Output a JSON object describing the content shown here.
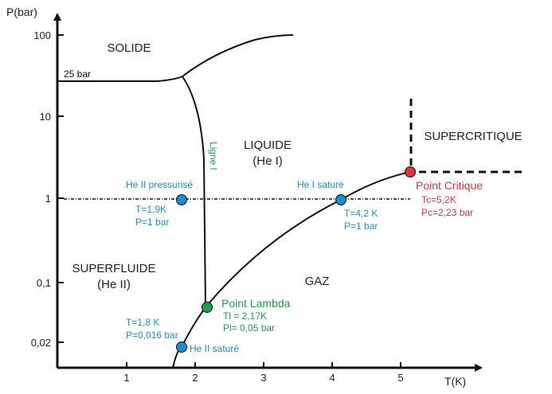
{
  "axes": {
    "y_title": "P(bar)",
    "x_title": "T(K)",
    "y_ticks": [
      "100",
      "10",
      "1",
      "0,1",
      "0,02"
    ],
    "x_ticks": [
      "1",
      "2",
      "3",
      "4",
      "5"
    ]
  },
  "phases": {
    "solide": "SOLIDE",
    "liquide_1": "LIQUIDE",
    "liquide_2": "(He I)",
    "superfluide_1": "SUPERFLUIDE",
    "superfluide_2": "(He II)",
    "gaz": "GAZ",
    "supercritique": "SUPERCRITIQUE"
  },
  "lines": {
    "solid_25bar": "25 bar",
    "ligne_lambda": "Ligne l"
  },
  "points": {
    "pressurise": {
      "label": "He II pressurisé",
      "t": "T=1,9K",
      "p": "P=1 bar"
    },
    "sature_i": {
      "label": "He I saturé",
      "t": "T=4,2 K",
      "p": "P=1 bar"
    },
    "critique": {
      "label": "Point Critique",
      "tc": "Tc=5,2K",
      "pc": "Pc=2,23 bar"
    },
    "lambda": {
      "label": "Point Lambda",
      "tl": "Tl = 2,17K",
      "pl": "Pl= 0,05 bar"
    },
    "sature_ii": {
      "label": "He II saturé",
      "t": "T=1,8 K",
      "p": "P=0,016 bar"
    }
  },
  "colors": {
    "blue": "#1a8fd0",
    "green": "#1fa24a",
    "red": "#e0343f",
    "black": "#111111"
  }
}
